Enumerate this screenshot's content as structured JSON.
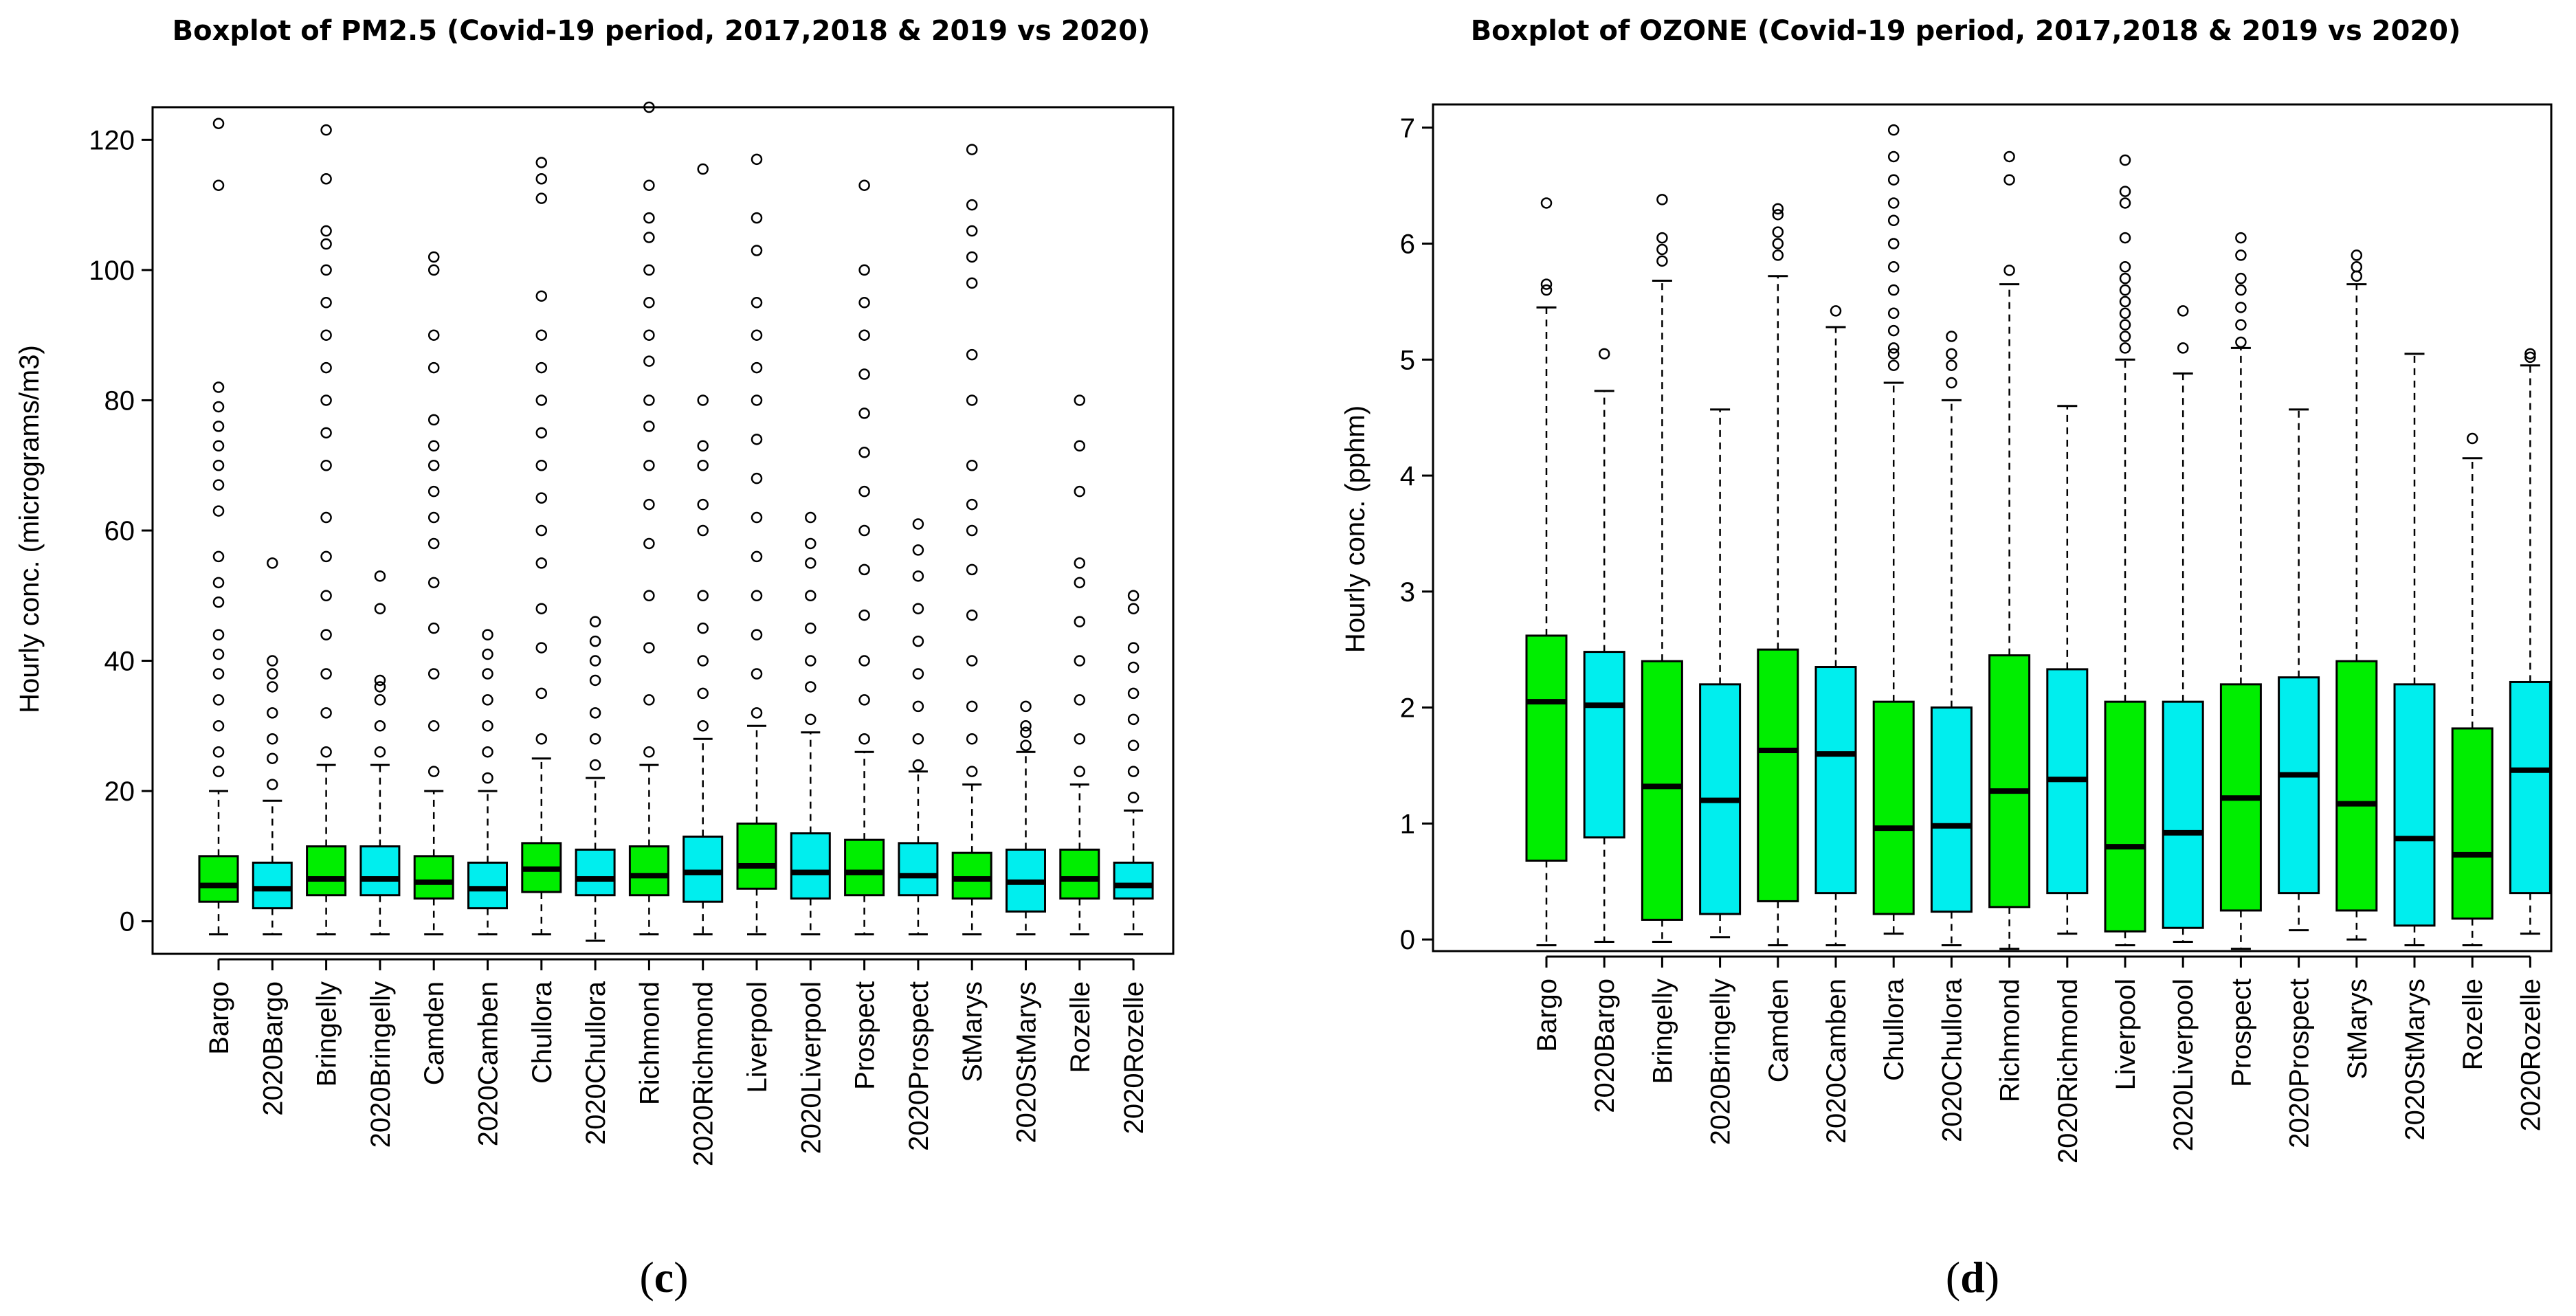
{
  "figure": {
    "panels": [
      "c",
      "d"
    ]
  },
  "chart_data": [
    {
      "type": "boxplot",
      "panel": "c",
      "title": "Boxplot of PM2.5 (Covid-19 period, 2017,2018 & 2019 vs 2020)",
      "xlabel": "",
      "ylabel": "Hourly conc. (micrograms/m3)",
      "ylim": [
        -5,
        125
      ],
      "yticks": [
        0,
        20,
        40,
        60,
        80,
        100,
        120
      ],
      "colors": {
        "historical": "#00ee00",
        "year2020": "#00eeee"
      },
      "categories": [
        "Bargo",
        "2020Bargo",
        "Bringelly",
        "2020Bringelly",
        "Camden",
        "2020Camben",
        "Chullora",
        "2020Chullora",
        "Richmond",
        "2020Richmond",
        "Liverpool",
        "2020Liverpool",
        "Prospect",
        "2020Prospect",
        "StMarys",
        "2020StMarys",
        "Rozelle",
        "2020Rozelle"
      ],
      "group": [
        "historical",
        "year2020",
        "historical",
        "year2020",
        "historical",
        "year2020",
        "historical",
        "year2020",
        "historical",
        "year2020",
        "historical",
        "year2020",
        "historical",
        "year2020",
        "historical",
        "year2020",
        "historical",
        "year2020"
      ],
      "whisker_low": [
        -2,
        -2,
        -2,
        -2,
        -2,
        -2,
        -2,
        -3,
        -2,
        -2,
        -2,
        -2,
        -2,
        -2,
        -2,
        -2,
        -2,
        -2
      ],
      "q1": [
        3,
        2,
        4,
        4,
        3.5,
        2,
        4.5,
        4,
        4,
        3,
        5,
        3.5,
        4,
        4,
        3.5,
        1.5,
        3.5,
        3.5
      ],
      "median": [
        5.5,
        5,
        6.5,
        6.5,
        6,
        5,
        8,
        6.5,
        7,
        7.5,
        8.5,
        7.5,
        7.5,
        7,
        6.5,
        6,
        6.5,
        5.5
      ],
      "q3": [
        10,
        9,
        11.5,
        11.5,
        10,
        9,
        12,
        11,
        11.5,
        13,
        15,
        13.5,
        12.5,
        12,
        10.5,
        11,
        11,
        9
      ],
      "whisker_high": [
        20,
        18.5,
        24,
        24,
        20,
        20,
        25,
        22,
        24,
        28,
        30,
        29,
        26,
        23,
        21,
        26,
        21,
        17
      ],
      "outliers": [
        [
          23,
          26,
          30,
          34,
          38,
          41,
          44,
          49,
          52,
          56,
          63,
          67,
          70,
          73,
          76,
          79,
          82,
          113,
          122.5
        ],
        [
          21,
          25,
          28,
          32,
          36,
          38,
          40,
          55
        ],
        [
          26,
          32,
          38,
          44,
          50,
          56,
          62,
          70,
          75,
          80,
          85,
          90,
          95,
          100,
          104,
          106,
          114,
          121.5
        ],
        [
          26,
          30,
          34,
          36,
          37,
          48,
          53
        ],
        [
          23,
          30,
          38,
          45,
          52,
          58,
          62,
          66,
          70,
          73,
          77,
          85,
          90,
          100,
          102
        ],
        [
          22,
          26,
          30,
          34,
          38,
          41,
          44
        ],
        [
          28,
          35,
          42,
          48,
          55,
          60,
          65,
          70,
          75,
          80,
          85,
          90,
          96,
          111,
          114,
          116.5
        ],
        [
          24,
          28,
          32,
          37,
          40,
          43,
          46
        ],
        [
          26,
          34,
          42,
          50,
          58,
          64,
          70,
          76,
          80,
          86,
          90,
          95,
          100,
          105,
          108,
          113,
          125
        ],
        [
          30,
          35,
          40,
          45,
          50,
          60,
          64,
          70,
          73,
          80,
          115.5
        ],
        [
          32,
          38,
          44,
          50,
          56,
          62,
          68,
          74,
          80,
          85,
          90,
          95,
          103,
          108,
          117
        ],
        [
          31,
          36,
          40,
          45,
          50,
          55,
          58,
          62
        ],
        [
          28,
          34,
          40,
          47,
          54,
          60,
          66,
          72,
          78,
          84,
          90,
          95,
          100,
          113
        ],
        [
          24,
          28,
          33,
          38,
          43,
          48,
          53,
          57,
          61
        ],
        [
          23,
          28,
          33,
          40,
          47,
          54,
          60,
          64,
          70,
          80,
          87,
          98,
          102,
          106,
          110,
          118.5
        ],
        [
          27,
          29,
          30,
          33
        ],
        [
          23,
          28,
          34,
          40,
          46,
          52,
          55,
          66,
          73,
          80
        ],
        [
          19,
          23,
          27,
          31,
          35,
          39,
          42,
          48,
          50
        ]
      ]
    },
    {
      "type": "boxplot",
      "panel": "d",
      "title": "Boxplot of OZONE (Covid-19 period, 2017,2018 & 2019 vs 2020)",
      "xlabel": "",
      "ylabel": "Hourly conc. (pphm)",
      "ylim": [
        -0.1,
        7.2
      ],
      "yticks": [
        0,
        1,
        2,
        3,
        4,
        5,
        6,
        7
      ],
      "colors": {
        "historical": "#00ee00",
        "year2020": "#00eeee"
      },
      "categories": [
        "Bargo",
        "2020Bargo",
        "Bringelly",
        "2020Bringelly",
        "Camden",
        "2020Camben",
        "Chullora",
        "2020Chullora",
        "Richmond",
        "2020Richmond",
        "Liverpool",
        "2020Liverpool",
        "Prospect",
        "2020Prospect",
        "StMarys",
        "2020StMarys",
        "Rozelle",
        "2020Rozelle"
      ],
      "group": [
        "historical",
        "year2020",
        "historical",
        "year2020",
        "historical",
        "year2020",
        "historical",
        "year2020",
        "historical",
        "year2020",
        "historical",
        "year2020",
        "historical",
        "year2020",
        "historical",
        "year2020",
        "historical",
        "year2020"
      ],
      "whisker_low": [
        -0.05,
        -0.02,
        -0.02,
        0.02,
        -0.05,
        -0.05,
        0.05,
        -0.05,
        -0.08,
        0.05,
        -0.05,
        -0.02,
        -0.08,
        0.08,
        0,
        -0.05,
        -0.05,
        0.05
      ],
      "q1": [
        0.68,
        0.88,
        0.17,
        0.22,
        0.33,
        0.4,
        0.22,
        0.24,
        0.28,
        0.4,
        0.07,
        0.1,
        0.25,
        0.4,
        0.25,
        0.12,
        0.18,
        0.4
      ],
      "median": [
        2.05,
        2.02,
        1.32,
        1.2,
        1.63,
        1.6,
        0.96,
        0.98,
        1.28,
        1.38,
        0.8,
        0.92,
        1.22,
        1.42,
        1.17,
        0.87,
        0.73,
        1.46
      ],
      "q3": [
        2.62,
        2.48,
        2.4,
        2.2,
        2.5,
        2.35,
        2.05,
        2.0,
        2.45,
        2.33,
        2.05,
        2.05,
        2.2,
        2.26,
        2.4,
        2.2,
        1.82,
        2.22
      ],
      "whisker_high": [
        5.45,
        4.73,
        5.68,
        4.57,
        5.72,
        5.28,
        4.8,
        4.65,
        5.65,
        4.6,
        5.0,
        4.88,
        5.1,
        4.57,
        5.65,
        5.05,
        4.15,
        4.95
      ],
      "outliers": [
        [
          5.6,
          5.65,
          6.35
        ],
        [
          5.05
        ],
        [
          5.85,
          5.95,
          6.05,
          6.38
        ],
        [],
        [
          5.9,
          6.0,
          6.1,
          6.25,
          6.3
        ],
        [
          5.42
        ],
        [
          4.95,
          5.05,
          5.1,
          5.25,
          5.4,
          5.6,
          5.8,
          6.0,
          6.2,
          6.35,
          6.55,
          6.75,
          6.98
        ],
        [
          4.8,
          4.95,
          5.05,
          5.2
        ],
        [
          5.77,
          6.55,
          6.75
        ],
        [],
        [
          5.1,
          5.2,
          5.3,
          5.4,
          5.5,
          5.6,
          5.7,
          5.8,
          6.05,
          6.35,
          6.45,
          6.72
        ],
        [
          5.1,
          5.42
        ],
        [
          5.15,
          5.3,
          5.45,
          5.6,
          5.7,
          5.9,
          6.05
        ],
        [],
        [
          5.72,
          5.8,
          5.9
        ],
        [],
        [
          4.32
        ],
        [
          5.02,
          5.05
        ]
      ]
    }
  ]
}
